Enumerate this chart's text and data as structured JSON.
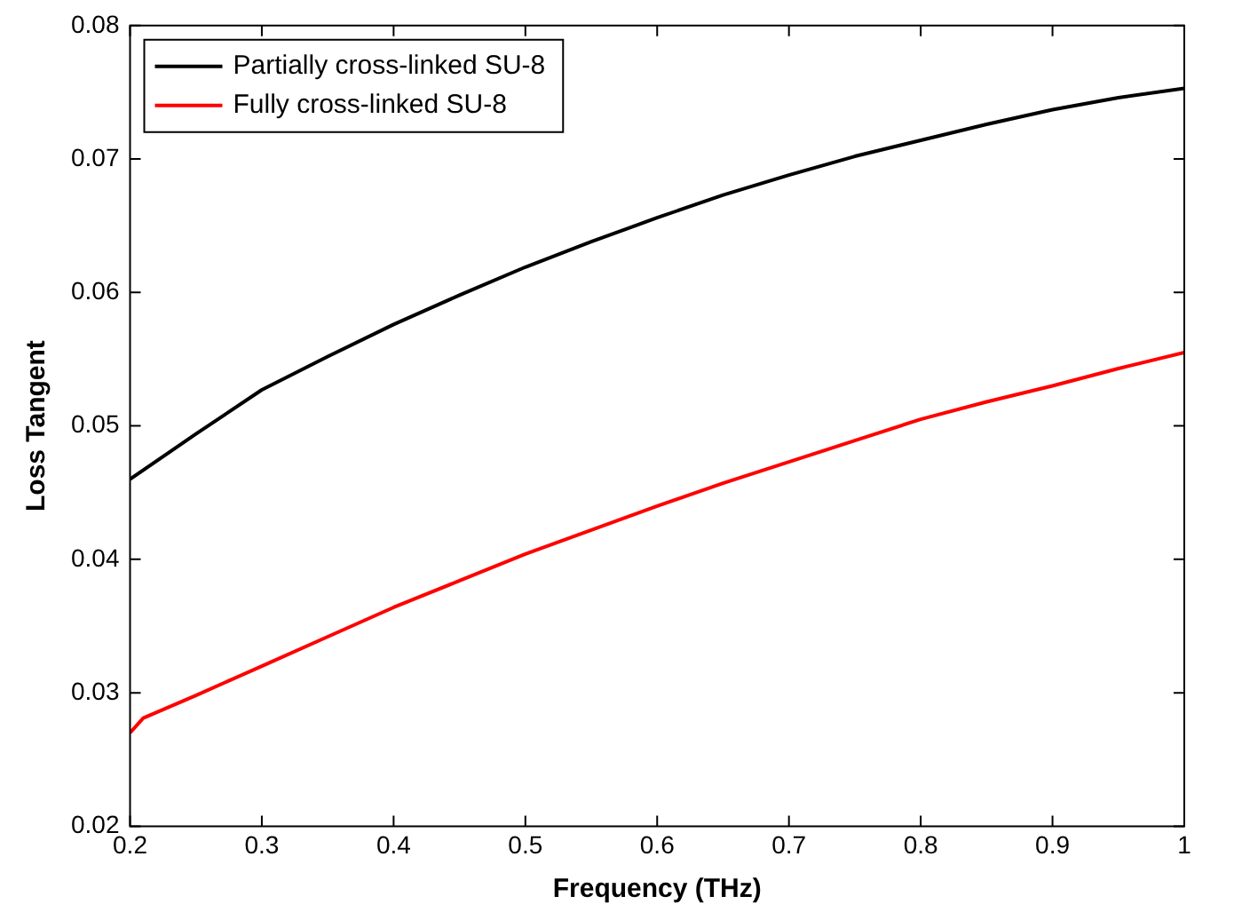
{
  "chart_data": {
    "type": "line",
    "xlabel": "Frequency (THz)",
    "ylabel": "Loss Tangent",
    "xlim": [
      0.2,
      1
    ],
    "xticks": [
      0.2,
      0.3,
      0.4,
      0.5,
      0.6,
      0.7,
      0.8,
      0.9,
      1
    ],
    "ylim": [
      0.02,
      0.08
    ],
    "yticks": [
      0.02,
      0.03,
      0.04,
      0.05,
      0.06,
      0.07,
      0.08
    ],
    "grid": false,
    "legend": "top left",
    "marker": "none",
    "line_style": "solid",
    "series": [
      {
        "name": "Partially cross-linked SU-8",
        "color": "#000000",
        "x": [
          0.2,
          0.25,
          0.3,
          0.35,
          0.4,
          0.45,
          0.5,
          0.55,
          0.6,
          0.65,
          0.7,
          0.75,
          0.8,
          0.85,
          0.9,
          0.95,
          1
        ],
        "values": [
          0.046,
          0.0494,
          0.0527,
          0.0552,
          0.0576,
          0.0598,
          0.0619,
          0.0638,
          0.0656,
          0.0673,
          0.0688,
          0.0702,
          0.0714,
          0.0726,
          0.0737,
          0.0746,
          0.0753
        ]
      },
      {
        "name": "Fully cross-linked SU-8",
        "color": "#ff0000",
        "x": [
          0.2,
          0.21,
          0.25,
          0.3,
          0.35,
          0.4,
          0.45,
          0.5,
          0.55,
          0.6,
          0.65,
          0.7,
          0.75,
          0.8,
          0.85,
          0.9,
          0.95,
          1
        ],
        "values": [
          0.027,
          0.0281,
          0.0298,
          0.032,
          0.0342,
          0.0364,
          0.0384,
          0.0404,
          0.0422,
          0.044,
          0.0457,
          0.0473,
          0.0489,
          0.0505,
          0.0518,
          0.053,
          0.0543,
          0.0555
        ]
      }
    ]
  }
}
